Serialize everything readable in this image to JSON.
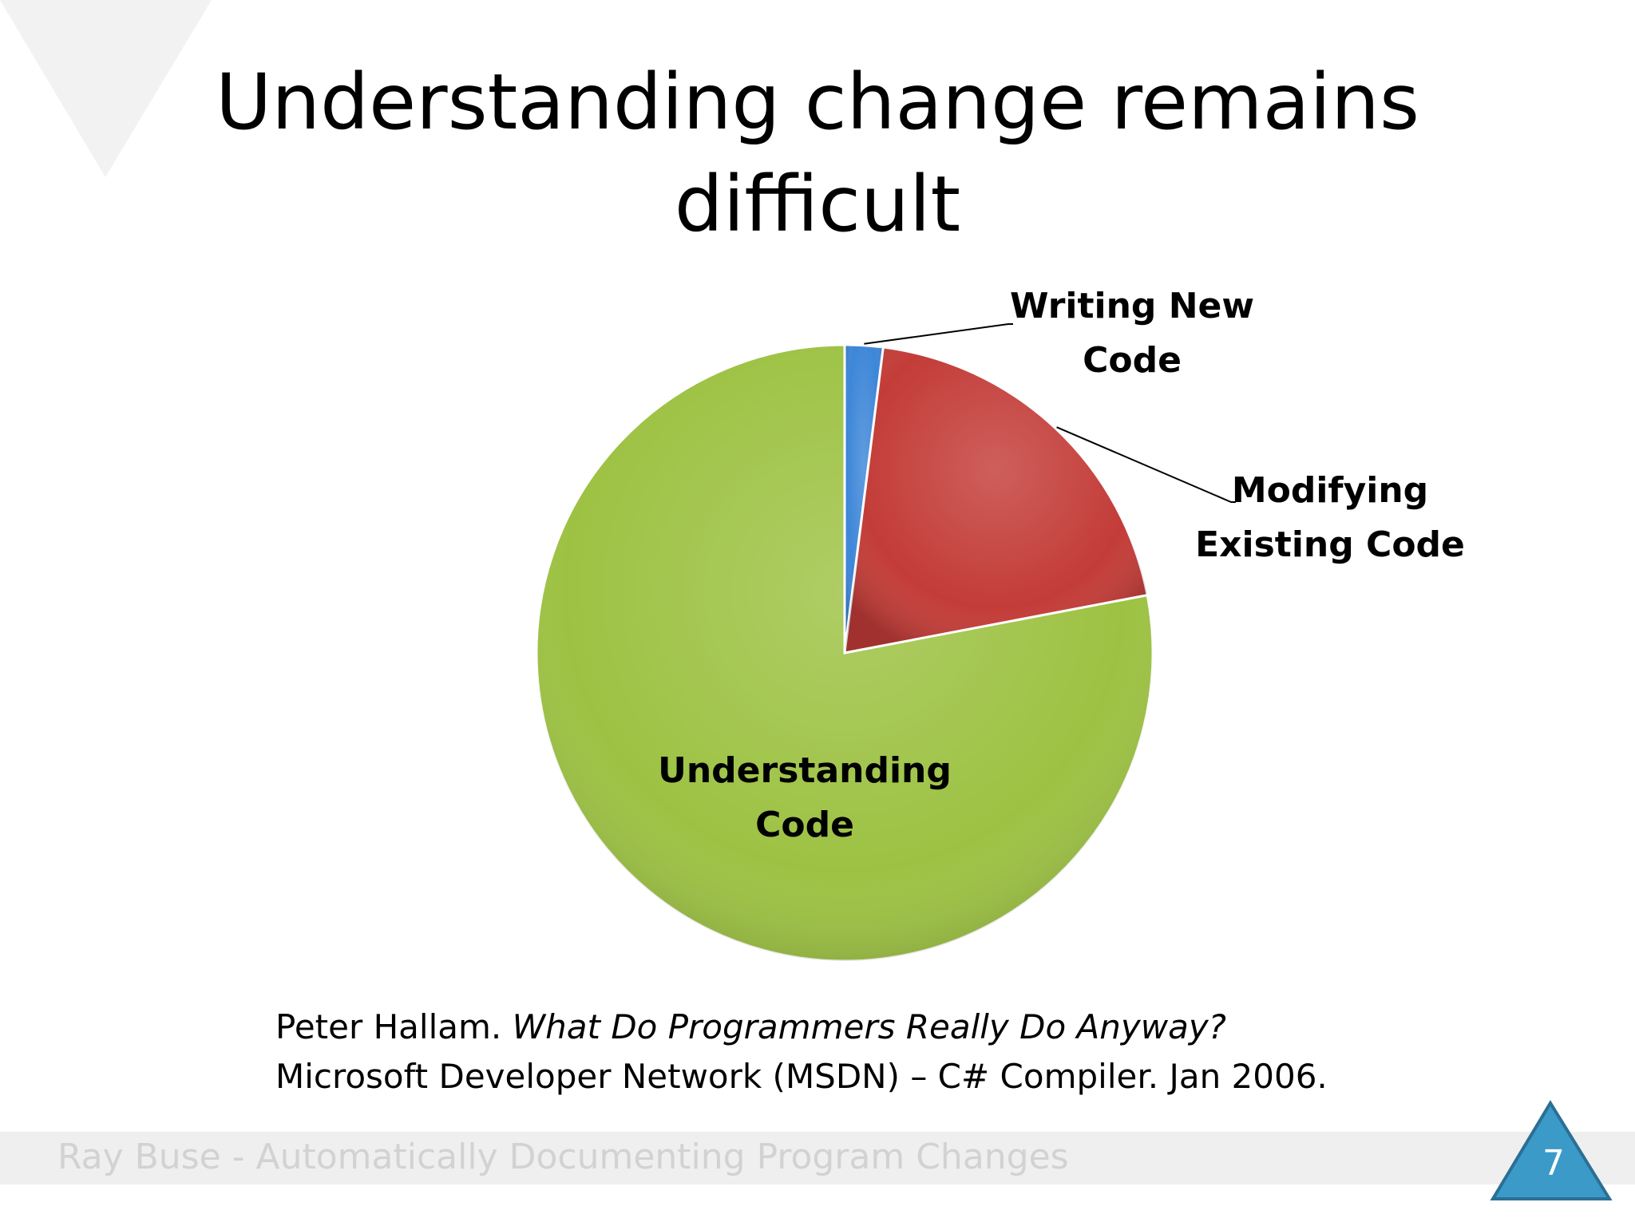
{
  "slide": {
    "title_line1": "Understanding change remains",
    "title_line2": "difficult",
    "citation_author": "Peter Hallam.",
    "citation_title": "What Do Programmers Really Do Anyway?",
    "citation_line2": "Microsoft Developer Network (MSDN) – C# Compiler. Jan 2006.",
    "footer": "Ray Buse - Automatically Documenting Program Changes",
    "page_number": "7"
  },
  "colors": {
    "background_triangle": "#f2f2f2",
    "page_triangle": "#3b9ac7",
    "page_triangle_edge": "#2a6f96"
  },
  "chart_data": {
    "type": "pie",
    "title": "",
    "start_angle_deg": 0,
    "direction": "clockwise",
    "slices": [
      {
        "label_lines": [
          "Writing New",
          "Code"
        ],
        "value": 2,
        "color": "#3d86d8"
      },
      {
        "label_lines": [
          "Modifying",
          "Existing Code"
        ],
        "value": 20,
        "color": "#c33c38"
      },
      {
        "label_lines": [
          "Understanding",
          "Code"
        ],
        "value": 78,
        "color": "#9dc243"
      }
    ],
    "legend": "none"
  }
}
